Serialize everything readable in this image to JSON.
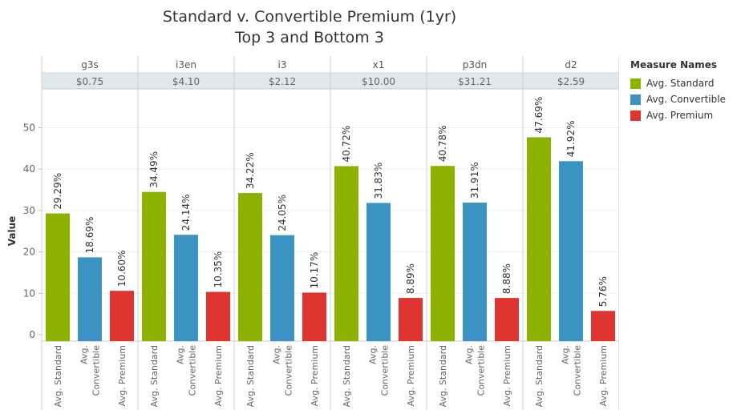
{
  "chart_data": {
    "type": "bar",
    "title": [
      "Standard v. Convertible Premium (1yr)",
      "Top 3 and Bottom 3"
    ],
    "ylabel": "Value",
    "ylim": [
      0,
      58
    ],
    "yticks": [
      0,
      10,
      20,
      30,
      40,
      50
    ],
    "grid": true,
    "legend": {
      "title": "Measure Names",
      "placement": "right",
      "items": [
        {
          "label": "Avg. Standard",
          "color": "#8cb200"
        },
        {
          "label": "Avg. Convertible",
          "color": "#3a93c3"
        },
        {
          "label": "Avg. Premium",
          "color": "#e03431"
        }
      ]
    },
    "panels": [
      {
        "name": "g3s",
        "price": "$0.75",
        "values": [
          29.29,
          18.69,
          10.6
        ],
        "labels": [
          "29.29%",
          "18.69%",
          "10.60%"
        ]
      },
      {
        "name": "i3en",
        "price": "$4.10",
        "values": [
          34.49,
          24.14,
          10.35
        ],
        "labels": [
          "34.49%",
          "24.14%",
          "10.35%"
        ]
      },
      {
        "name": "i3",
        "price": "$2.12",
        "values": [
          34.22,
          24.05,
          10.17
        ],
        "labels": [
          "34.22%",
          "24.05%",
          "10.17%"
        ]
      },
      {
        "name": "x1",
        "price": "$10.00",
        "values": [
          40.72,
          31.83,
          8.89
        ],
        "labels": [
          "40.72%",
          "31.83%",
          "8.89%"
        ]
      },
      {
        "name": "p3dn",
        "price": "$31.21",
        "values": [
          40.78,
          31.91,
          8.88
        ],
        "labels": [
          "40.78%",
          "31.91%",
          "8.88%"
        ]
      },
      {
        "name": "d2",
        "price": "$2.59",
        "values": [
          47.69,
          41.92,
          5.76
        ],
        "labels": [
          "47.69%",
          "41.92%",
          "5.76%"
        ]
      }
    ],
    "measures": [
      {
        "name": "Avg. Standard",
        "axis_lines": [
          "Avg. Standard"
        ],
        "color": "#8cb200"
      },
      {
        "name": "Avg. Convertible",
        "axis_lines": [
          "Avg.",
          "Convertible"
        ],
        "color": "#3a93c3"
      },
      {
        "name": "Avg. Premium",
        "axis_lines": [
          "Avg. Premium"
        ],
        "color": "#e03431"
      }
    ]
  }
}
